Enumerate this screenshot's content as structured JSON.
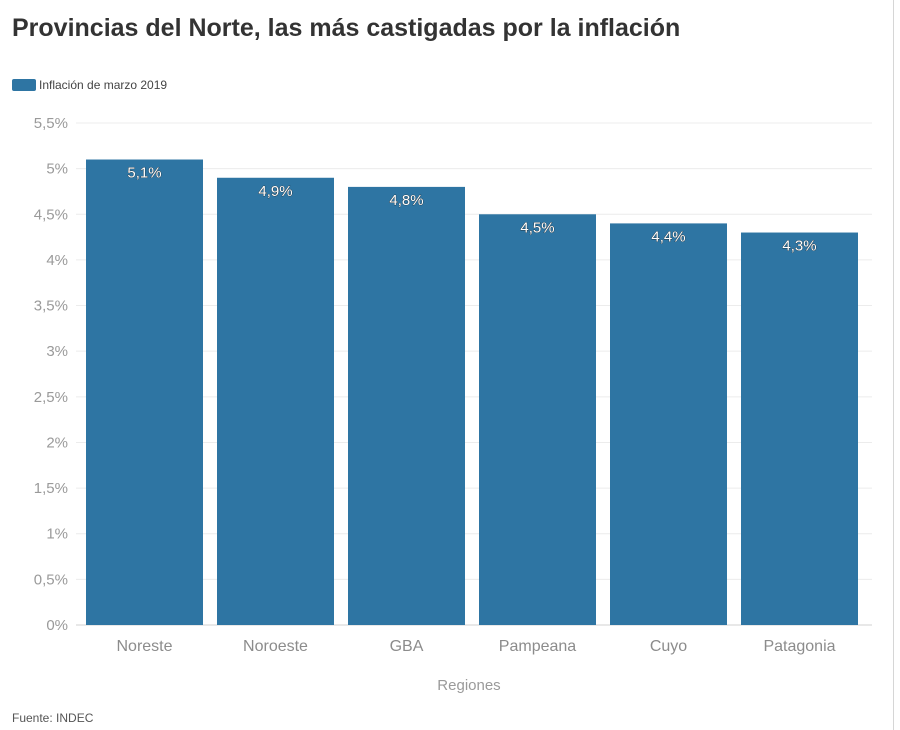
{
  "chart_data": {
    "type": "bar",
    "title": "Provincias del Norte, las más castigadas por la inflación",
    "xlabel": "Regiones",
    "ylabel": "",
    "categories": [
      "Noreste",
      "Noroeste",
      "GBA",
      "Pampeana",
      "Cuyo",
      "Patagonia"
    ],
    "series": [
      {
        "name": "Inflación de marzo 2019",
        "values": [
          5.1,
          4.9,
          4.8,
          4.5,
          4.4,
          4.3
        ]
      }
    ],
    "data_labels": [
      "5,1%",
      "4,9%",
      "4,8%",
      "4,5%",
      "4,4%",
      "4,3%"
    ],
    "ylim": [
      0,
      5.5
    ],
    "yticks": [
      0,
      0.5,
      1,
      1.5,
      2,
      2.5,
      3,
      3.5,
      4,
      4.5,
      5,
      5.5
    ],
    "ytick_labels": [
      "0%",
      "0,5%",
      "1%",
      "1,5%",
      "2%",
      "2,5%",
      "3%",
      "3,5%",
      "4%",
      "4,5%",
      "5%",
      "5,5%"
    ],
    "grid": true,
    "legend_position": "top-left",
    "bar_color": "#2e75a3",
    "source": "Fuente: INDEC"
  }
}
